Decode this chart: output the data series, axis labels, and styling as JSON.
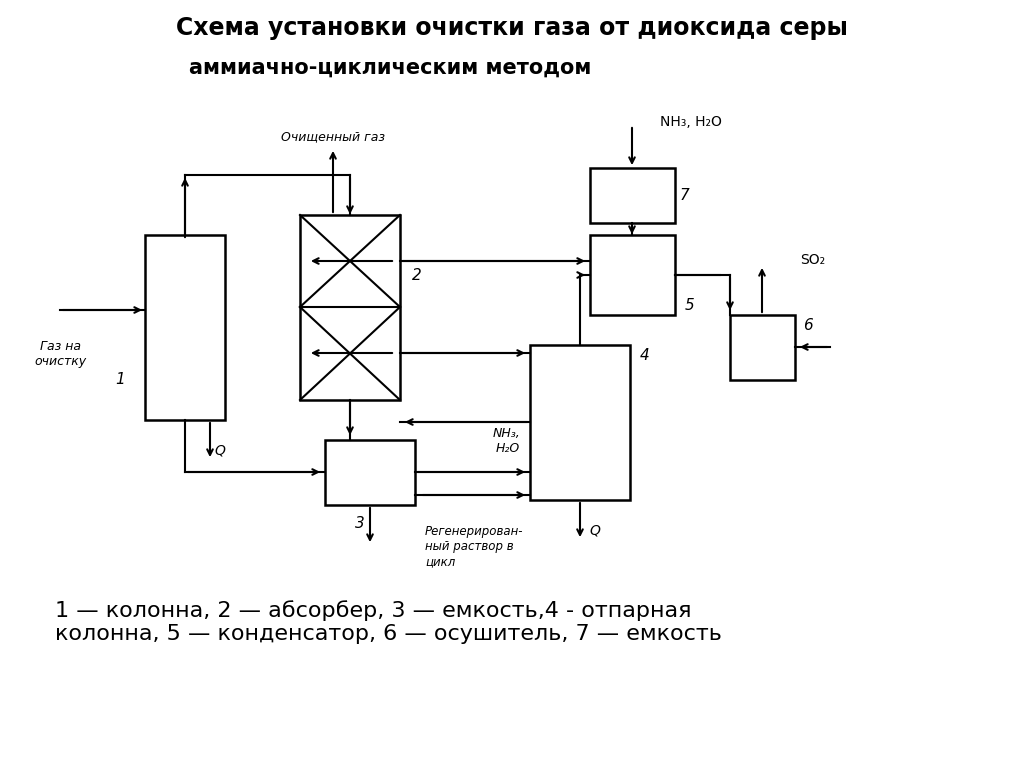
{
  "title_line1": "Схема установки очистки газа от диоксида серы",
  "title_line2": "аммиачно-циклическим методом",
  "legend_text": "1 — колонна, 2 — абсорбер, 3 — емкость,4 - отпарная\nколонна, 5 — конденсатор, 6 — осушитель, 7 — емкость",
  "bg_color": "#ffffff",
  "box_edge": "#000000",
  "box_face": "#ffffff",
  "lw": 1.8
}
